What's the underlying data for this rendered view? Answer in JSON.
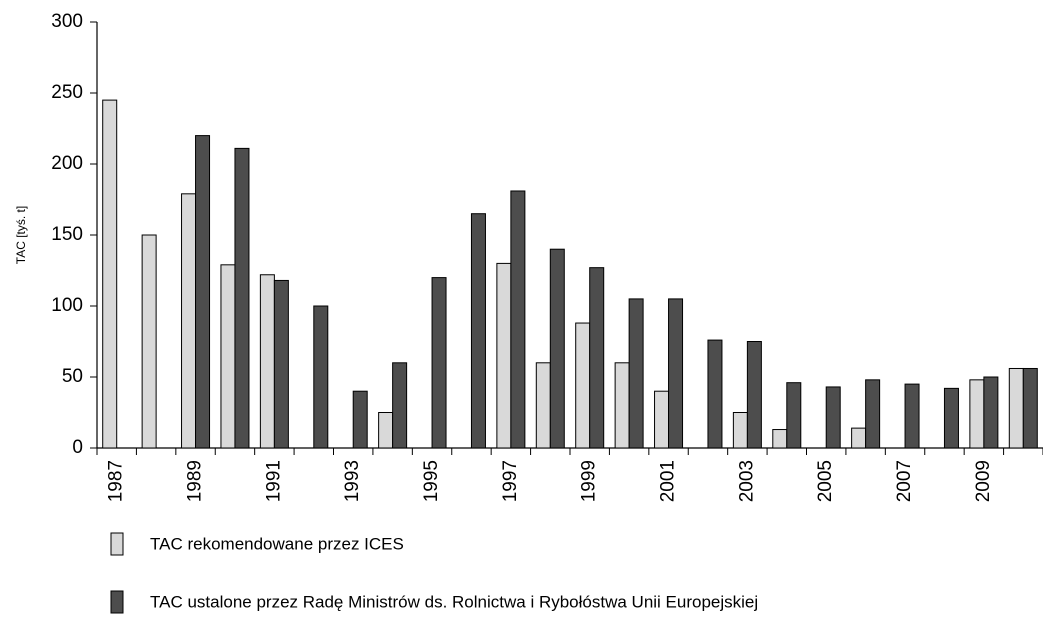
{
  "chart_data": {
    "type": "bar",
    "y_label": "TAC [tyś. t]",
    "categories": [
      "1987",
      null,
      "1989",
      null,
      "1991",
      null,
      "1993",
      null,
      "1995",
      null,
      "1997",
      null,
      "1999",
      null,
      "2001",
      null,
      "2003",
      null,
      "2005",
      null,
      "2007",
      null,
      "2009",
      null
    ],
    "series": [
      {
        "name": "TAC rekomendowane przez ICES",
        "color": "#d9d9d9",
        "values": [
          245,
          150,
          179,
          129,
          122,
          null,
          null,
          25,
          null,
          null,
          130,
          60,
          88,
          60,
          40,
          null,
          25,
          13,
          null,
          14,
          null,
          null,
          48,
          56
        ]
      },
      {
        "name": "TAC ustalone przez Radę Ministrów ds. Rolnictwa i Rybołóstwa Unii Europejskiej",
        "color": "#4d4d4d",
        "values": [
          null,
          null,
          220,
          211,
          118,
          100,
          40,
          60,
          120,
          165,
          181,
          140,
          127,
          105,
          105,
          76,
          75,
          46,
          43,
          48,
          45,
          42,
          50,
          56
        ]
      }
    ],
    "ylim": [
      0,
      300
    ],
    "yticks": [
      0,
      50,
      100,
      150,
      200,
      250,
      300
    ],
    "grid": false
  }
}
